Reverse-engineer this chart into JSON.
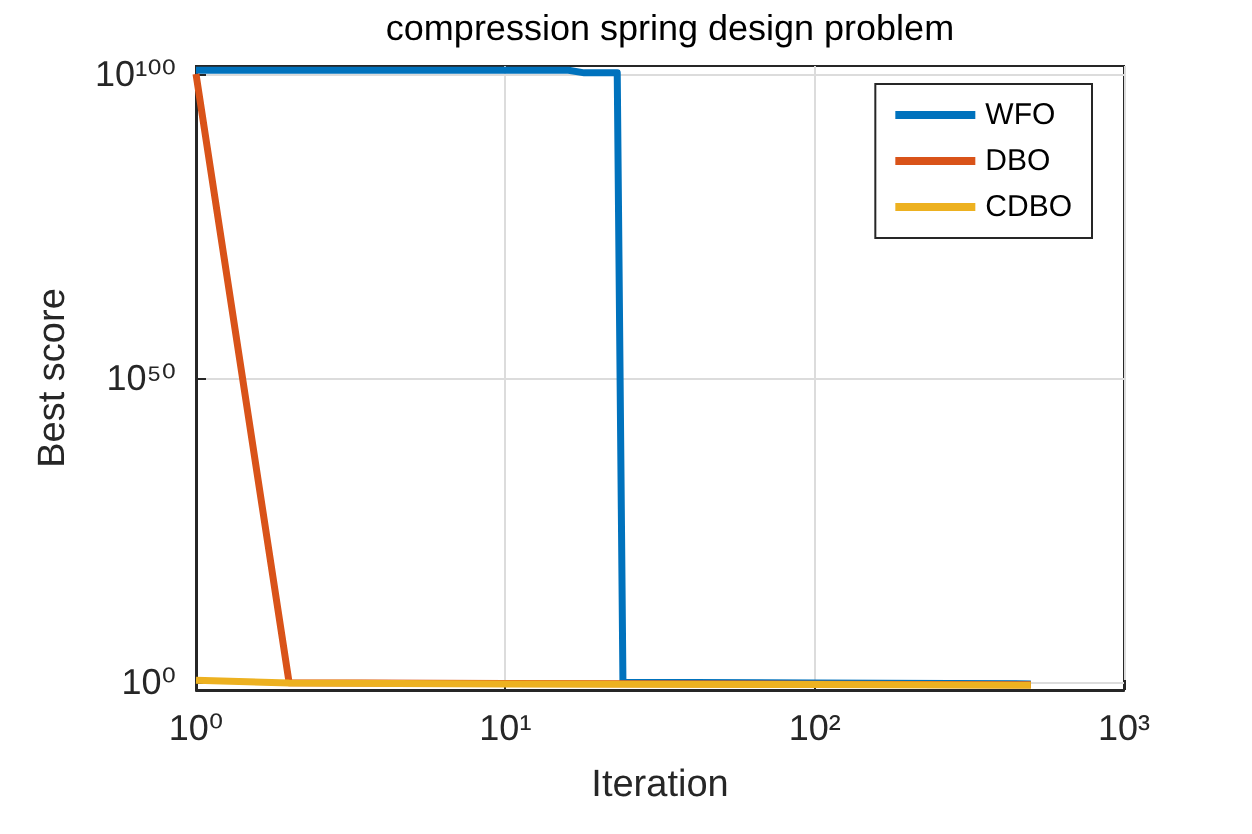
{
  "chart_data": {
    "type": "line",
    "title": "compression spring design problem",
    "xlabel": "Iteration",
    "ylabel": "Best score",
    "log": "xy",
    "grid": true,
    "legend": "top right",
    "marker": "none",
    "line_style": "solid",
    "xlim": [
      1,
      1000
    ],
    "xticks": [
      {
        "value": 1,
        "label": "10⁰"
      },
      {
        "value": 10,
        "label": "10¹"
      },
      {
        "value": 100,
        "label": "10²"
      },
      {
        "value": 1000,
        "label": "10³"
      }
    ],
    "ylim": [
      0.05,
      2e+101
    ],
    "yticks": [
      {
        "value": 1,
        "label": "10⁰"
      },
      {
        "value": 1e+50,
        "label": "10⁵⁰"
      },
      {
        "value": 1e+100,
        "label": "10¹⁰⁰"
      }
    ],
    "series": [
      {
        "name": "WFO",
        "color": "#0072bd",
        "x": [
          1,
          16,
          18,
          23,
          24,
          100,
          500
        ],
        "values": [
          4e+100,
          4e+100,
          1.5e+100,
          1.5e+100,
          0.9,
          0.7,
          0.5
        ]
      },
      {
        "name": "DBO",
        "color": "#d95319",
        "x": [
          1,
          2,
          10,
          100,
          500
        ],
        "values": [
          1e+100,
          0.8,
          0.6,
          0.45,
          0.35
        ]
      },
      {
        "name": "CDBO",
        "color": "#edb120",
        "x": [
          1,
          2,
          10,
          100,
          500
        ],
        "values": [
          2,
          0.7,
          0.5,
          0.4,
          0.3
        ]
      }
    ]
  }
}
